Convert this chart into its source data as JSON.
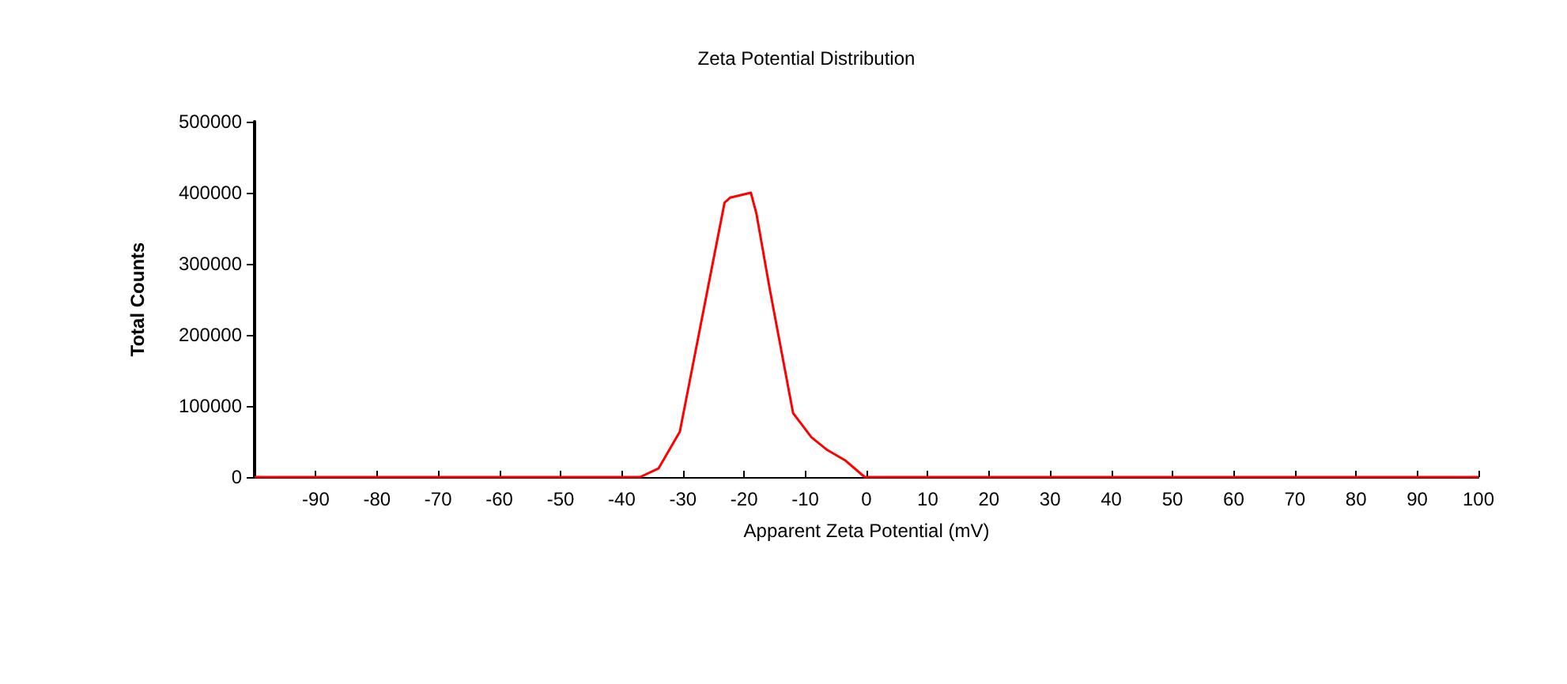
{
  "chart_data": {
    "type": "line",
    "title": "Zeta Potential Distribution",
    "xlabel": "Apparent Zeta Potential (mV)",
    "ylabel": "Total Counts",
    "series": [
      {
        "color": "#ff0000",
        "x": [
          -100,
          -37,
          -34,
          -30.5,
          -23.2,
          -22.3,
          -18.9,
          -18,
          -15.8,
          -12,
          -9,
          -6.4,
          -3.4,
          -0.3,
          100
        ],
        "values": [
          0,
          0,
          12000,
          64000,
          386000,
          393000,
          400000,
          371000,
          264000,
          90000,
          56000,
          38000,
          23000,
          0,
          0
        ]
      }
    ],
    "xlim": [
      -100,
      100
    ],
    "xticks": [
      -90,
      -80,
      -70,
      -60,
      -50,
      -40,
      -30,
      -20,
      -10,
      0,
      10,
      20,
      30,
      40,
      50,
      60,
      70,
      80,
      90,
      100
    ],
    "ylim": [
      0,
      500000
    ],
    "yticks": [
      0,
      100000,
      200000,
      300000,
      400000,
      500000
    ],
    "grid": false,
    "marker": "none",
    "line_style": "solid"
  }
}
